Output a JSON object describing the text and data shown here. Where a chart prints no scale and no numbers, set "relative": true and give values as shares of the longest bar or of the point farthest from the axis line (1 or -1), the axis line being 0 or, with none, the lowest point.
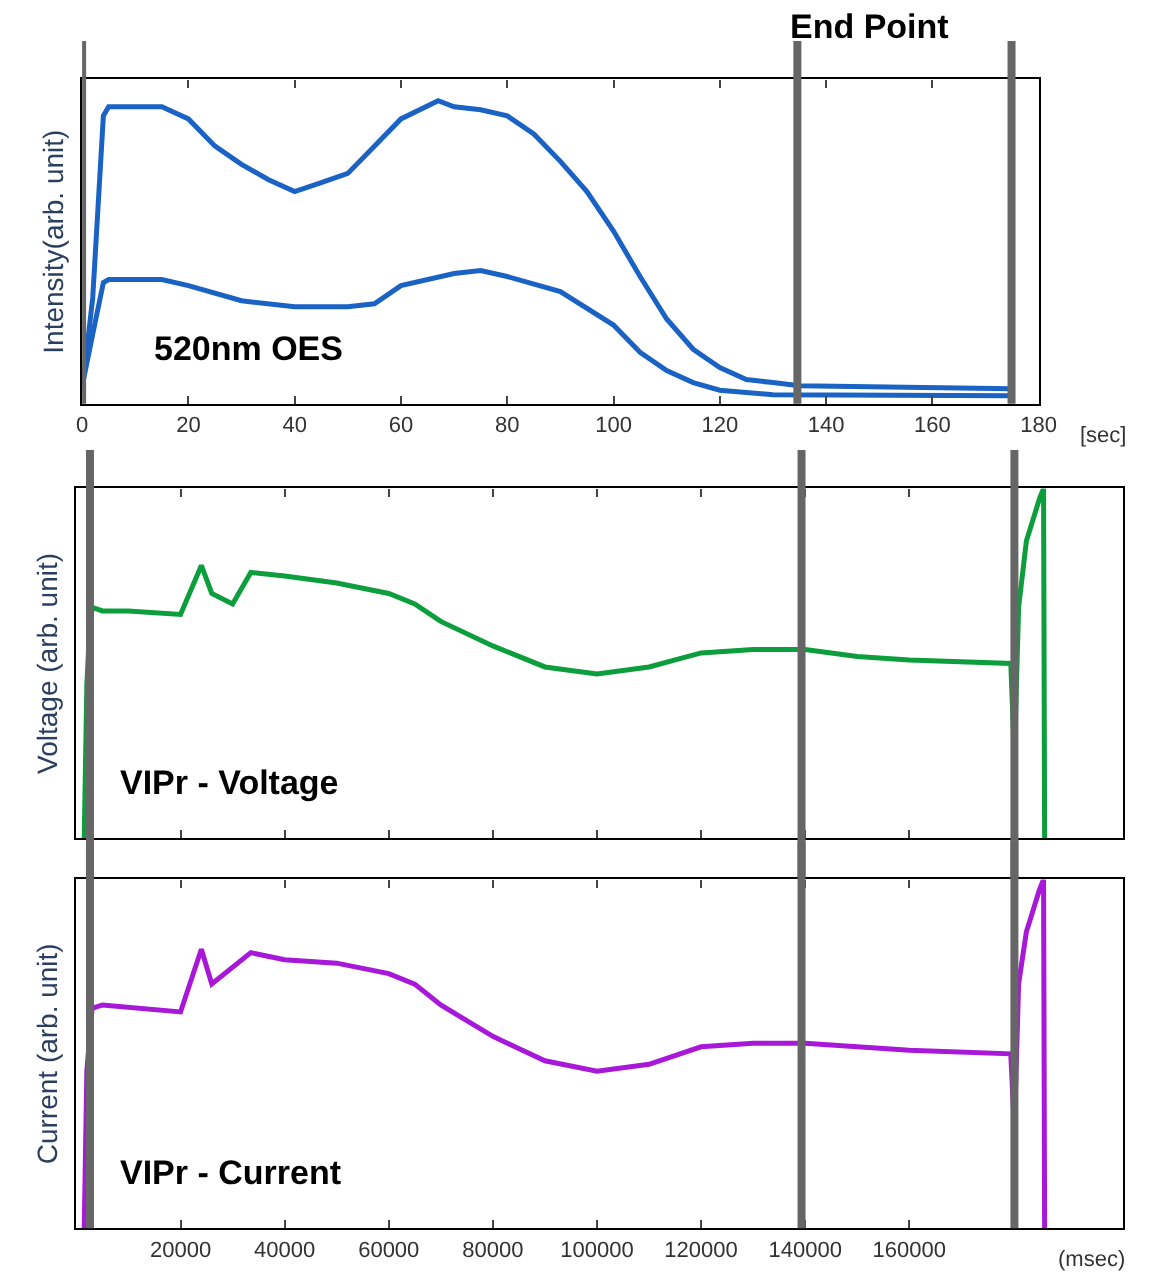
{
  "chart_data": [
    {
      "type": "line",
      "title": "End Point",
      "relative": true,
      "ylabel": "Intensity(arb. unit)",
      "xlabel": "[sec]",
      "xlim": [
        0,
        180
      ],
      "xticks": [
        0,
        20,
        40,
        60,
        80,
        100,
        120,
        140,
        160,
        180
      ],
      "tick_labels": "x",
      "annotations": [
        "520nm OES"
      ],
      "ref_lines": [
        {
          "axis": "x",
          "value": 0,
          "color": "#666666"
        },
        {
          "axis": "x",
          "value": 134.6,
          "color": "#666666"
        },
        {
          "axis": "x",
          "value": 174.9,
          "color": "#666666"
        }
      ],
      "series": [
        {
          "color": "#1a62c4",
          "x": [
            0,
            2,
            4,
            5,
            10,
            15,
            20,
            25,
            30,
            35,
            40,
            45,
            50,
            55,
            60,
            67,
            70,
            75,
            80,
            85,
            90,
            95,
            100,
            105,
            110,
            115,
            120,
            125,
            130,
            135,
            175
          ],
          "values": [
            0.045,
            0.35,
            0.95,
            0.98,
            0.98,
            0.98,
            0.94,
            0.85,
            0.79,
            0.74,
            0.7,
            0.73,
            0.76,
            0.85,
            0.94,
            1.0,
            0.98,
            0.97,
            0.95,
            0.89,
            0.8,
            0.7,
            0.57,
            0.42,
            0.28,
            0.18,
            0.12,
            0.08,
            0.07,
            0.06,
            0.05
          ]
        },
        {
          "color": "#1a62c4",
          "x": [
            0,
            2,
            4,
            5,
            15,
            20,
            30,
            40,
            50,
            55,
            60,
            70,
            75,
            80,
            90,
            100,
            105,
            110,
            115,
            120,
            130,
            175
          ],
          "values": [
            0.057,
            0.23,
            0.4,
            0.41,
            0.41,
            0.39,
            0.34,
            0.32,
            0.32,
            0.33,
            0.39,
            0.43,
            0.44,
            0.42,
            0.37,
            0.26,
            0.17,
            0.11,
            0.07,
            0.045,
            0.03,
            0.027
          ]
        }
      ]
    },
    {
      "type": "line",
      "relative": true,
      "ylabel": "Voltage (arb. unit)",
      "xlim": [
        0,
        201000
      ],
      "xticks": [
        20000,
        40000,
        60000,
        80000,
        100000,
        120000,
        140000,
        160000
      ],
      "tick_labels": false,
      "annotations": [
        "VIPr - Voltage"
      ],
      "ref_lines": [
        {
          "axis": "x",
          "value": 2600,
          "color": "#666666"
        },
        {
          "axis": "x",
          "value": 139300,
          "color": "#666666"
        },
        {
          "axis": "x",
          "value": 180200,
          "color": "#666666"
        }
      ],
      "series": [
        {
          "color": "#0c9e3c",
          "x": [
            1500,
            2000,
            2500,
            3000,
            5000,
            10000,
            20000,
            24000,
            26000,
            30000,
            33500,
            40000,
            50000,
            60000,
            65000,
            70000,
            80000,
            90000,
            100000,
            110000,
            120000,
            130000,
            140000,
            150000,
            160000,
            179500,
            180200,
            181000,
            182500,
            185000,
            185800,
            186000
          ],
          "values": [
            0,
            0.44,
            0.59,
            0.66,
            0.65,
            0.65,
            0.64,
            0.78,
            0.7,
            0.67,
            0.76,
            0.75,
            0.73,
            0.7,
            0.67,
            0.62,
            0.55,
            0.49,
            0.47,
            0.49,
            0.53,
            0.54,
            0.54,
            0.52,
            0.51,
            0.5,
            0.23,
            0.66,
            0.85,
            0.97,
            1.0,
            0
          ]
        }
      ]
    },
    {
      "type": "line",
      "relative": true,
      "ylabel": "Current (arb. unit)",
      "xlabel": "(msec)",
      "xlim": [
        0,
        201000
      ],
      "xticks": [
        20000,
        40000,
        60000,
        80000,
        100000,
        120000,
        140000,
        160000
      ],
      "tick_labels": "x",
      "annotations": [
        "VIPr - Current"
      ],
      "ref_lines": [
        {
          "axis": "x",
          "value": 2600,
          "color": "#666666"
        },
        {
          "axis": "x",
          "value": 139300,
          "color": "#666666"
        },
        {
          "axis": "x",
          "value": 180200,
          "color": "#666666"
        }
      ],
      "series": [
        {
          "color": "#a818d8",
          "x": [
            1500,
            2000,
            3000,
            5000,
            20000,
            24000,
            26000,
            33500,
            40000,
            50000,
            60000,
            65000,
            70000,
            80000,
            90000,
            100000,
            110000,
            120000,
            130000,
            140000,
            150000,
            160000,
            179500,
            180200,
            181000,
            182500,
            185000,
            185800,
            186000
          ],
          "values": [
            0,
            0.45,
            0.63,
            0.64,
            0.62,
            0.8,
            0.7,
            0.79,
            0.77,
            0.76,
            0.73,
            0.7,
            0.64,
            0.55,
            0.48,
            0.45,
            0.47,
            0.52,
            0.53,
            0.53,
            0.52,
            0.51,
            0.5,
            0.28,
            0.7,
            0.85,
            0.97,
            1.0,
            0
          ]
        }
      ]
    }
  ]
}
